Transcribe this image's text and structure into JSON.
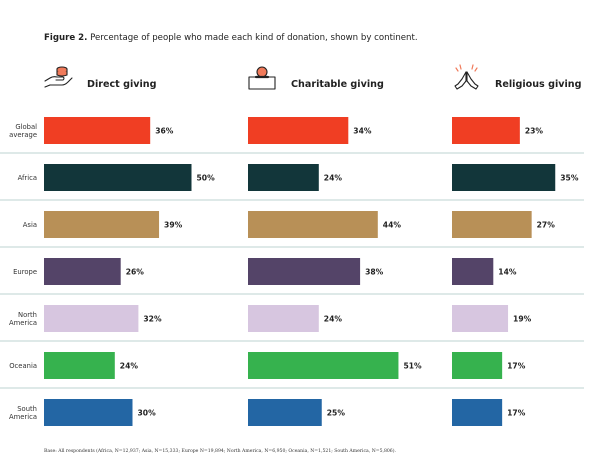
{
  "caption": {
    "prefix": "Figure 2.",
    "text": "Percentage of people who made each kind of donation, shown by continent."
  },
  "footnote": "Base: All respondents (Africa, N=12,937; Asia, N=15,333; Europe N=19,894; North America, N=6,950; Oceania, N=1,521; South America, N=5,806).",
  "icons": [
    "hand-coins-icon",
    "charity-box-icon",
    "praying-hands-icon"
  ],
  "chart_data": {
    "type": "bar",
    "orientation": "horizontal",
    "categories": [
      [
        "Global",
        "average"
      ],
      [
        "Africa"
      ],
      [
        "Asia"
      ],
      [
        "Europe"
      ],
      [
        "North",
        "America"
      ],
      [
        "Oceania"
      ],
      [
        "South",
        "America"
      ]
    ],
    "category_colors": [
      "#f03e23",
      "#12363a",
      "#b89057",
      "#544468",
      "#d7c6e0",
      "#36b24e",
      "#2366a4"
    ],
    "value_suffix": "%",
    "xlim": [
      0,
      60
    ],
    "grid": false,
    "series": [
      {
        "name": "Direct giving",
        "values": [
          36,
          50,
          39,
          26,
          32,
          24,
          30
        ]
      },
      {
        "name": "Charitable giving",
        "values": [
          34,
          24,
          44,
          38,
          24,
          51,
          25
        ]
      },
      {
        "name": "Religious giving",
        "values": [
          23,
          35,
          27,
          14,
          19,
          17,
          17
        ]
      }
    ]
  }
}
